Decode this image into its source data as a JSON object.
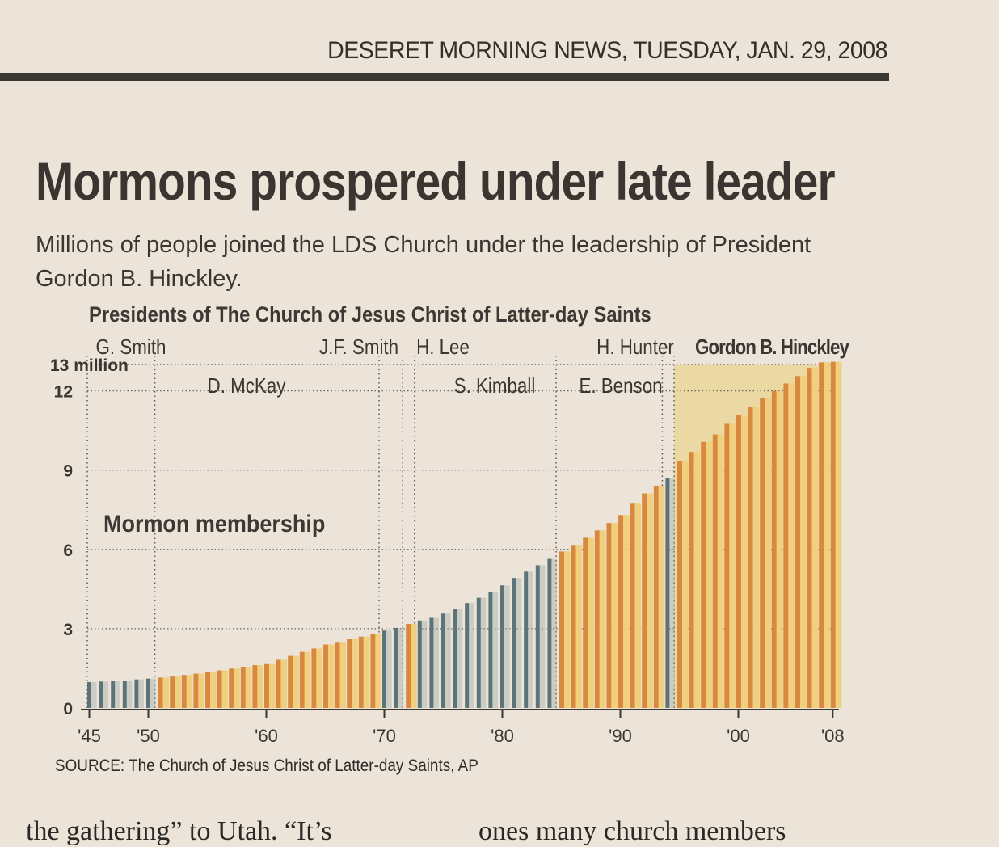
{
  "masthead": "DESERET MORNING NEWS, TUESDAY, JAN. 29, 2008",
  "headline": "Mormons prospered under late leader",
  "dek": "Millions of people joined the LDS Church under the leadership of President Gordon B. Hinckley.",
  "colors": {
    "bar_warm_a": "#d9893e",
    "bar_warm_b": "#f0cf7e",
    "bar_cool": "#5c7478",
    "bar_cool_light": "#8fa3a3",
    "highlight_bg": "#ead9a2"
  },
  "chart_data": {
    "type": "bar",
    "title": "Presidents of The Church of Jesus Christ of Latter-day Saints",
    "series_label": "Mormon membership",
    "ylabel": "13 million",
    "ylim": [
      0,
      13
    ],
    "yticks": [
      {
        "value": 0,
        "label": "0"
      },
      {
        "value": 3,
        "label": "3"
      },
      {
        "value": 6,
        "label": "6"
      },
      {
        "value": 9,
        "label": "9"
      },
      {
        "value": 12,
        "label": "12"
      },
      {
        "value": 13,
        "label": "13 million"
      }
    ],
    "xticks": [
      {
        "year": 1945,
        "label": "'45"
      },
      {
        "year": 1950,
        "label": "'50"
      },
      {
        "year": 1960,
        "label": "'60"
      },
      {
        "year": 1970,
        "label": "'70"
      },
      {
        "year": 1980,
        "label": "'80"
      },
      {
        "year": 1990,
        "label": "'90"
      },
      {
        "year": 2000,
        "label": "'00"
      },
      {
        "year": 2008,
        "label": "'08"
      }
    ],
    "years": [
      1945,
      1946,
      1947,
      1948,
      1949,
      1950,
      1951,
      1952,
      1953,
      1954,
      1955,
      1956,
      1957,
      1958,
      1959,
      1960,
      1961,
      1962,
      1963,
      1964,
      1965,
      1966,
      1967,
      1968,
      1969,
      1970,
      1971,
      1972,
      1973,
      1974,
      1975,
      1976,
      1977,
      1978,
      1979,
      1980,
      1981,
      1982,
      1983,
      1984,
      1985,
      1986,
      1987,
      1988,
      1989,
      1990,
      1991,
      1992,
      1993,
      1994,
      1995,
      1996,
      1997,
      1998,
      1999,
      2000,
      2001,
      2002,
      2003,
      2004,
      2005,
      2006,
      2007,
      2008
    ],
    "values": [
      0.98,
      1.0,
      1.02,
      1.04,
      1.08,
      1.11,
      1.15,
      1.19,
      1.25,
      1.3,
      1.36,
      1.42,
      1.49,
      1.56,
      1.62,
      1.69,
      1.82,
      1.97,
      2.12,
      2.25,
      2.4,
      2.5,
      2.6,
      2.7,
      2.8,
      2.93,
      3.03,
      3.18,
      3.31,
      3.41,
      3.57,
      3.74,
      3.97,
      4.17,
      4.4,
      4.64,
      4.92,
      5.16,
      5.4,
      5.64,
      5.92,
      6.17,
      6.44,
      6.72,
      7.0,
      7.3,
      7.76,
      8.12,
      8.41,
      8.69,
      9.34,
      9.69,
      10.07,
      10.35,
      10.75,
      11.07,
      11.39,
      11.72,
      11.99,
      12.28,
      12.56,
      12.87,
      13.08,
      13.1
    ],
    "presidents": [
      {
        "name": "G. Smith",
        "start": 1945,
        "end": 1951,
        "style": "cool"
      },
      {
        "name": "D. McKay",
        "start": 1951,
        "end": 1970,
        "style": "warm"
      },
      {
        "name": "J.F. Smith",
        "start": 1970,
        "end": 1972,
        "style": "cool"
      },
      {
        "name": "H. Lee",
        "start": 1972,
        "end": 1973,
        "style": "warm"
      },
      {
        "name": "S. Kimball",
        "start": 1973,
        "end": 1985,
        "style": "cool"
      },
      {
        "name": "E. Benson",
        "start": 1985,
        "end": 1994,
        "style": "warm"
      },
      {
        "name": "H. Hunter",
        "start": 1994,
        "end": 1995,
        "style": "cool"
      },
      {
        "name": "Gordon B. Hinckley",
        "start": 1995,
        "end": 2008,
        "style": "warm",
        "highlight": true
      }
    ],
    "grid": true
  },
  "source": "SOURCE: The Church of Jesus Christ of Latter-day Saints, AP",
  "body_text": {
    "left": "the gathering” to Utah. “It’s",
    "right": "ones many church members"
  }
}
